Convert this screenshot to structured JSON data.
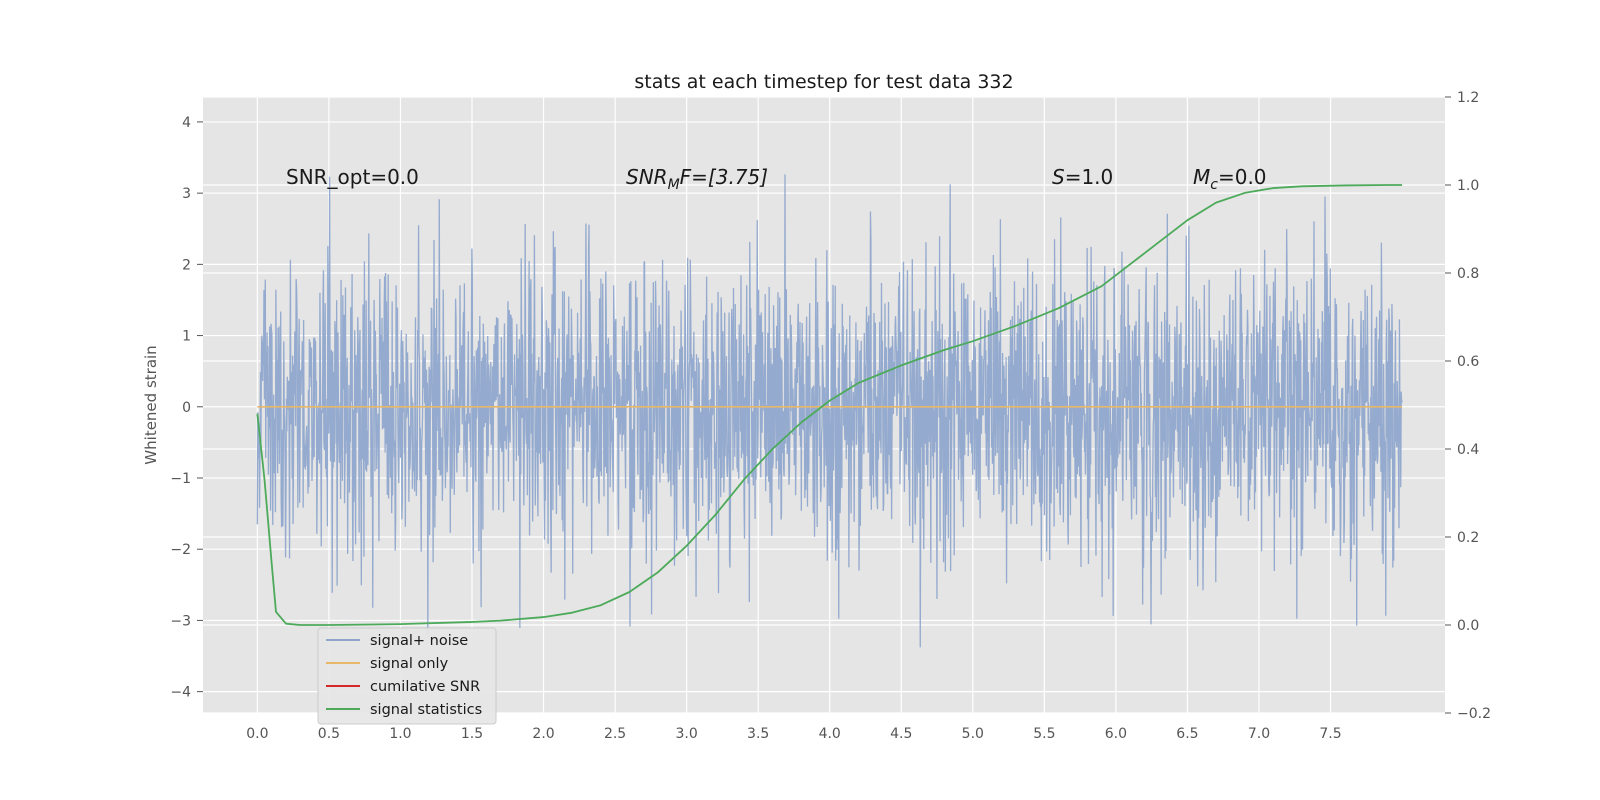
{
  "chart_data": {
    "type": "line",
    "title": "stats at each timestep for test data 332",
    "ylabel": "Whitened strain",
    "xlim": [
      -0.38,
      8.3
    ],
    "ylim": [
      -4.3,
      4.35
    ],
    "y2lim": [
      -0.2,
      1.2
    ],
    "grid": true,
    "legend_position": "lower-left",
    "xticks": [
      "0.0",
      "0.5",
      "1.0",
      "1.5",
      "2.0",
      "2.5",
      "3.0",
      "3.5",
      "4.0",
      "4.5",
      "5.0",
      "5.5",
      "6.0",
      "6.5",
      "7.0",
      "7.5"
    ],
    "yticks": [
      "−4",
      "−3",
      "−2",
      "−1",
      "0",
      "1",
      "2",
      "3",
      "4"
    ],
    "y2ticks": [
      "−0.2",
      "0.0",
      "0.2",
      "0.4",
      "0.6",
      "0.8",
      "1.0",
      "1.2"
    ],
    "colors": {
      "background": "#e5e5e5",
      "noise": "#8fa6cc",
      "signal": "#e8b86a",
      "snr": "#d62728",
      "stats": "#4caa5a"
    },
    "series": [
      {
        "name": "signal+ noise",
        "axis": "left",
        "description_of_values": "random whitened strain samples from t=0 to t=8, roughly within -3.8 to 4.0"
      },
      {
        "name": "signal only",
        "axis": "left",
        "x": [
          0.0,
          8.0
        ],
        "y": [
          0.0,
          0.0
        ]
      },
      {
        "name": "cumilative SNR",
        "axis": "left",
        "x": [],
        "y": []
      },
      {
        "name": "signal statistics",
        "axis": "right",
        "x": [
          0.0,
          0.05,
          0.1,
          0.13,
          0.2,
          0.3,
          0.5,
          1.0,
          1.5,
          1.7,
          2.0,
          2.2,
          2.4,
          2.6,
          2.8,
          3.0,
          3.2,
          3.4,
          3.6,
          3.8,
          4.0,
          4.2,
          4.5,
          4.8,
          5.0,
          5.3,
          5.6,
          5.9,
          6.1,
          6.3,
          6.5,
          6.7,
          6.9,
          7.1,
          7.3,
          7.6,
          7.9,
          8.0
        ],
        "y": [
          0.48,
          0.33,
          0.14,
          0.03,
          0.003,
          0.0,
          0.0,
          0.002,
          0.007,
          0.01,
          0.018,
          0.028,
          0.045,
          0.075,
          0.12,
          0.18,
          0.25,
          0.33,
          0.4,
          0.46,
          0.51,
          0.55,
          0.59,
          0.625,
          0.645,
          0.68,
          0.72,
          0.77,
          0.82,
          0.87,
          0.92,
          0.96,
          0.982,
          0.993,
          0.997,
          0.999,
          1.0,
          1.0
        ]
      }
    ],
    "annotations": {
      "snr_opt": "SNR_opt=0.0",
      "snr_mf_main": "SNR",
      "snr_mf_sub": "M",
      "snr_mf_rest": "F=[3.75]",
      "s_main": "S",
      "s_rest": "=1.0",
      "mc_main": "M",
      "mc_sub": "c",
      "mc_rest": "=0.0"
    }
  },
  "legend": {
    "items": [
      "signal+ noise",
      "signal only",
      "cumilative SNR",
      "signal statistics"
    ]
  }
}
